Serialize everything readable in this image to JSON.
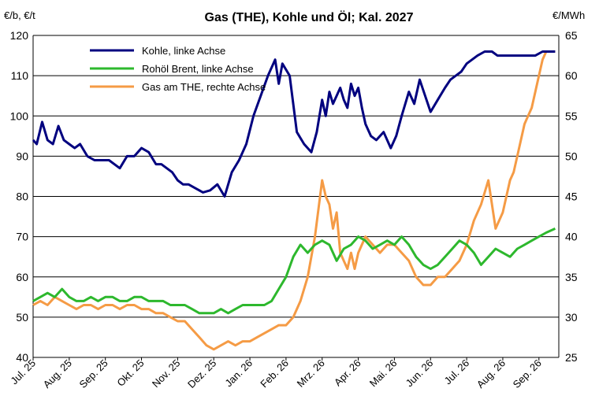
{
  "chart_data": {
    "type": "line",
    "title": "Gas (THE), Kohle und Öl; Kal. 2027",
    "left_unit": "€/b, €/t",
    "right_unit": "€/MWh",
    "ylim_left": [
      40,
      120
    ],
    "ylim_right": [
      25,
      65
    ],
    "left_ticks": [
      "40",
      "50",
      "60",
      "70",
      "80",
      "90",
      "100",
      "110",
      "120"
    ],
    "right_ticks": [
      "25",
      "30",
      "35",
      "40",
      "45",
      "50",
      "55",
      "60",
      "65"
    ],
    "grid": "horizontal",
    "legend_position": "top-left",
    "categories": [
      "Jul. 25",
      "Aug. 25",
      "Sep. 25",
      "Okt. 25",
      "Nov. 25",
      "Dez. 25",
      "Jan. 26",
      "Feb. 26",
      "Mrz. 26",
      "Apr. 26",
      "Mai. 26",
      "Jun. 26",
      "Jul. 26",
      "Aug. 26",
      "Sep. 26"
    ],
    "series": [
      {
        "name": "Kohle, linke Achse",
        "axis": "left",
        "color": "#00007f",
        "x": [
          0.0,
          0.1,
          0.25,
          0.4,
          0.55,
          0.7,
          0.85,
          1.0,
          1.15,
          1.3,
          1.5,
          1.7,
          1.9,
          2.1,
          2.25,
          2.4,
          2.6,
          2.8,
          3.0,
          3.2,
          3.4,
          3.55,
          3.7,
          3.85,
          4.0,
          4.15,
          4.3,
          4.5,
          4.7,
          4.9,
          5.1,
          5.3,
          5.5,
          5.7,
          5.9,
          6.1,
          6.3,
          6.5,
          6.7,
          6.8,
          6.9,
          7.1,
          7.3,
          7.5,
          7.7,
          7.85,
          8.0,
          8.1,
          8.2,
          8.3,
          8.4,
          8.5,
          8.6,
          8.7,
          8.8,
          8.9,
          9.0,
          9.1,
          9.2,
          9.35,
          9.5,
          9.7,
          9.9,
          10.05,
          10.2,
          10.4,
          10.55,
          10.7,
          10.85,
          11.0,
          11.2,
          11.4,
          11.55,
          11.7,
          11.85,
          12.0,
          12.15,
          12.3,
          12.5,
          12.7,
          12.85,
          13.0,
          13.15,
          13.3,
          13.5,
          13.7,
          13.9,
          14.1,
          14.3,
          14.45
        ],
        "values": [
          94,
          93,
          98.5,
          94,
          93,
          97.5,
          94,
          93,
          92,
          93,
          90,
          89,
          89,
          89,
          88,
          87,
          90,
          90,
          92,
          91,
          88,
          88,
          87,
          86,
          84,
          83,
          83,
          82,
          81,
          81.5,
          83,
          80,
          86,
          89,
          93,
          100,
          105,
          110,
          114,
          108,
          113,
          110,
          96,
          93,
          91,
          96,
          104,
          100,
          106,
          103,
          105,
          107,
          104,
          102,
          108,
          105,
          107,
          102,
          98,
          95,
          94,
          96,
          92,
          95,
          100,
          106,
          103,
          109,
          105,
          101,
          104,
          107,
          109,
          110,
          111,
          113,
          114,
          115,
          116,
          116,
          115,
          115,
          115,
          115,
          115,
          115,
          115,
          116,
          116,
          116
        ],
        "values_note": ""
      },
      {
        "name": "Rohöl Brent, linke Achse",
        "axis": "left",
        "color": "#2db82d",
        "x": [
          0.0,
          0.2,
          0.4,
          0.6,
          0.8,
          1.0,
          1.2,
          1.4,
          1.6,
          1.8,
          2.0,
          2.2,
          2.4,
          2.6,
          2.8,
          3.0,
          3.2,
          3.4,
          3.6,
          3.8,
          4.0,
          4.2,
          4.4,
          4.6,
          4.8,
          5.0,
          5.2,
          5.4,
          5.6,
          5.8,
          6.0,
          6.2,
          6.4,
          6.6,
          6.8,
          7.0,
          7.2,
          7.4,
          7.6,
          7.8,
          8.0,
          8.2,
          8.4,
          8.6,
          8.8,
          9.0,
          9.2,
          9.4,
          9.6,
          9.8,
          10.0,
          10.2,
          10.4,
          10.6,
          10.8,
          11.0,
          11.2,
          11.4,
          11.6,
          11.8,
          12.0,
          12.2,
          12.4,
          12.6,
          12.8,
          13.0,
          13.2,
          13.4,
          13.6,
          13.8,
          14.0,
          14.2,
          14.45
        ],
        "values": [
          54,
          55,
          56,
          55,
          57,
          55,
          54,
          54,
          55,
          54,
          55,
          55,
          54,
          54,
          55,
          55,
          54,
          54,
          54,
          53,
          53,
          53,
          52,
          51,
          51,
          51,
          52,
          51,
          52,
          53,
          53,
          53,
          53,
          54,
          57,
          60,
          65,
          68,
          66,
          68,
          69,
          68,
          64,
          67,
          68,
          70,
          69,
          67,
          68,
          69,
          68,
          70,
          68,
          65,
          63,
          62,
          63,
          65,
          67,
          69,
          68,
          66,
          63,
          65,
          67,
          66,
          65,
          67,
          68,
          69,
          70,
          71,
          72
        ]
      },
      {
        "name": "Gas am THE, rechte Achse",
        "axis": "right",
        "color": "#f59b45",
        "x": [
          0.0,
          0.2,
          0.4,
          0.6,
          0.8,
          1.0,
          1.2,
          1.4,
          1.6,
          1.8,
          2.0,
          2.2,
          2.4,
          2.6,
          2.8,
          3.0,
          3.2,
          3.4,
          3.6,
          3.8,
          4.0,
          4.2,
          4.4,
          4.6,
          4.8,
          5.0,
          5.2,
          5.4,
          5.6,
          5.8,
          6.0,
          6.2,
          6.4,
          6.6,
          6.8,
          7.0,
          7.2,
          7.4,
          7.6,
          7.8,
          8.0,
          8.1,
          8.2,
          8.3,
          8.4,
          8.5,
          8.6,
          8.7,
          8.8,
          8.9,
          9.0,
          9.2,
          9.4,
          9.6,
          9.8,
          10.0,
          10.2,
          10.4,
          10.6,
          10.8,
          11.0,
          11.2,
          11.4,
          11.6,
          11.8,
          12.0,
          12.2,
          12.4,
          12.6,
          12.8,
          13.0,
          13.1,
          13.2,
          13.3,
          13.4,
          13.5,
          13.6,
          13.7,
          13.8,
          13.9,
          14.0,
          14.1,
          14.2,
          14.3,
          14.45
        ],
        "values": [
          31.5,
          32,
          31.5,
          32.5,
          32,
          31.5,
          31,
          31.5,
          31.5,
          31,
          31.5,
          31.5,
          31,
          31.5,
          31.5,
          31,
          31,
          30.5,
          30.5,
          30,
          29.5,
          29.5,
          28.5,
          27.5,
          26.5,
          26,
          26.5,
          27,
          26.5,
          27,
          27,
          27.5,
          28,
          28.5,
          29,
          29,
          30,
          32,
          35,
          40,
          47,
          45,
          44,
          41,
          43,
          38,
          37,
          36,
          38,
          36,
          38,
          40,
          39,
          38,
          39,
          39,
          38,
          37,
          35,
          34,
          34,
          35,
          35,
          36,
          37,
          39,
          42,
          44,
          47,
          41,
          43,
          45,
          47,
          48,
          50,
          52,
          54,
          55,
          56,
          58,
          60,
          62,
          63,
          63,
          63
        ]
      }
    ]
  }
}
